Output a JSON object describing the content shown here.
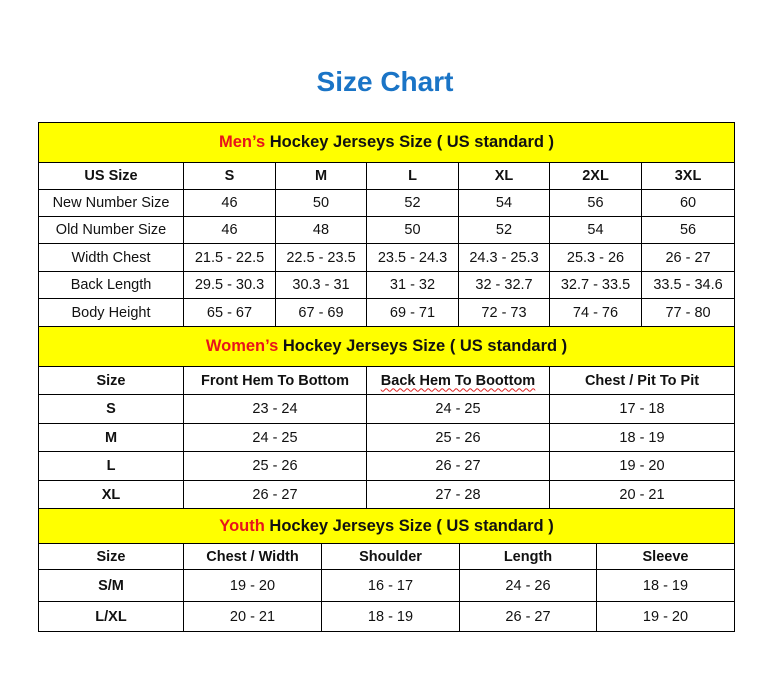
{
  "title": "Size Chart",
  "colors": {
    "title": "#1a74c6",
    "section_bg": "#ffff00",
    "highlight": "#e8141b"
  },
  "men": {
    "heading_highlight": "Men’s",
    "heading_rest": " Hockey Jerseys Size ( US standard )",
    "columns": [
      "US Size",
      "S",
      "M",
      "L",
      "XL",
      "2XL",
      "3XL"
    ],
    "rows": [
      [
        "New Number Size",
        "46",
        "50",
        "52",
        "54",
        "56",
        "60"
      ],
      [
        "Old Number Size",
        "46",
        "48",
        "50",
        "52",
        "54",
        "56"
      ],
      [
        "Width Chest",
        "21.5 - 22.5",
        "22.5 - 23.5",
        "23.5 - 24.3",
        "24.3 - 25.3",
        "25.3 - 26",
        "26 - 27"
      ],
      [
        "Back Length",
        "29.5 - 30.3",
        "30.3 - 31",
        "31 - 32",
        "32 - 32.7",
        "32.7 - 33.5",
        "33.5 - 34.6"
      ],
      [
        "Body Height",
        "65 - 67",
        "67 - 69",
        "69 - 71",
        "72 - 73",
        "74 - 76",
        "77 - 80"
      ]
    ]
  },
  "women": {
    "heading_highlight": "Women’s",
    "heading_rest": " Hockey Jerseys Size ( US standard )",
    "columns": [
      "Size",
      "Front Hem To Bottom",
      "Back Hem To Boottom",
      "Chest / Pit To Pit"
    ],
    "rows": [
      [
        "S",
        "23 - 24",
        "24 - 25",
        "17 - 18"
      ],
      [
        "M",
        "24 - 25",
        "25 - 26",
        "18 - 19"
      ],
      [
        "L",
        "25 - 26",
        "26 - 27",
        "19 - 20"
      ],
      [
        "XL",
        "26 - 27",
        "27 - 28",
        "20 - 21"
      ]
    ]
  },
  "youth": {
    "heading_highlight": "Youth",
    "heading_rest": " Hockey Jerseys Size ( US standard )",
    "columns": [
      "Size",
      "Chest / Width",
      "Shoulder",
      "Length",
      "Sleeve"
    ],
    "rows": [
      [
        "S/M",
        "19 - 20",
        "16 - 17",
        "24 - 26",
        "18 - 19"
      ],
      [
        "L/XL",
        "20 - 21",
        "18 - 19",
        "26 - 27",
        "19 - 20"
      ]
    ]
  }
}
